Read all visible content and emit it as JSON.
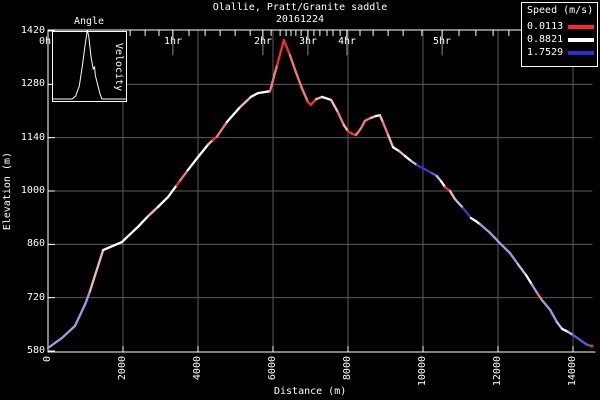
{
  "title": {
    "line1": "Olallie, Pratt/Granite saddle",
    "line2": "20161224"
  },
  "colors": {
    "background": "#000000",
    "foreground": "#ffffff",
    "grid": "#5c5c5c",
    "hour_gridline": "#8a8a8a",
    "legend_red": "#ff2626",
    "legend_white": "#ffffff",
    "legend_blue": "#2d2dd6"
  },
  "legend": {
    "title": "Speed (m/s)",
    "entries": [
      {
        "label": "0.0113",
        "color": "#ff2626"
      },
      {
        "label": "0.8821",
        "color": "#ffffff"
      },
      {
        "label": "1.7529",
        "color": "#2d2dd6"
      }
    ]
  },
  "axes": {
    "x": {
      "title": "Distance (m)",
      "ticks": [
        0,
        2000,
        4000,
        6000,
        8000,
        10000,
        12000,
        14000
      ]
    },
    "y": {
      "title": "Elevation (m)",
      "ticks": [
        1420,
        1280,
        1140,
        1000,
        860,
        720,
        580
      ]
    },
    "time": {
      "hour_marks": [
        {
          "label": "0hr",
          "distance_m": 0
        },
        {
          "label": "1hr",
          "distance_m": 3330
        },
        {
          "label": "2hr",
          "distance_m": 5730
        },
        {
          "label": "3hr",
          "distance_m": 6930
        },
        {
          "label": "4hr",
          "distance_m": 7970
        },
        {
          "label": "5hr",
          "distance_m": 10510
        }
      ],
      "minor_marks_m": [
        2190,
        2590,
        2960,
        3760,
        4190,
        4590,
        4990,
        5390,
        5950,
        6190,
        6350,
        6480,
        6610,
        6750,
        7090,
        7250,
        7440,
        7600,
        7790,
        8320,
        8670,
        9070,
        9470,
        9970,
        10960,
        11410,
        11870,
        12290
      ]
    }
  },
  "inset": {
    "title": "Angle",
    "side_label": "Velocity",
    "curve": [
      [
        0,
        0.03
      ],
      [
        0.26,
        0.03
      ],
      [
        0.31,
        0.07
      ],
      [
        0.36,
        0.22
      ],
      [
        0.4,
        0.5
      ],
      [
        0.44,
        0.82
      ],
      [
        0.47,
        1.04
      ],
      [
        0.49,
        0.95
      ],
      [
        0.52,
        0.65
      ],
      [
        0.55,
        0.47
      ],
      [
        0.57,
        0.5
      ],
      [
        0.58,
        0.38
      ],
      [
        0.61,
        0.25
      ],
      [
        0.645,
        0.1
      ],
      [
        0.67,
        0.03
      ],
      [
        1,
        0.03
      ]
    ]
  },
  "chart_data": {
    "type": "line",
    "title": "Olallie, Pratt/Granite saddle",
    "subtitle": "20161224",
    "xlabel": "Distance (m)",
    "ylabel": "Elevation (m)",
    "xlim": [
      0,
      14600
    ],
    "ylim": [
      580,
      1420
    ],
    "grid": true,
    "legend_position": "top-right",
    "series_label": "Speed (m/s)",
    "speed_legend": [
      {
        "speed_mps": 0.0113,
        "color_key": "r"
      },
      {
        "speed_mps": 0.8821,
        "color_key": "w"
      },
      {
        "speed_mps": 1.7529,
        "color_key": "b"
      }
    ],
    "palette": {
      "r": "#f23030",
      "s": "#f47b73",
      "p": "#f6b8b4",
      "w": "#ffffff",
      "lb": "#c0c0ea",
      "pb": "#9d9de2",
      "b": "#5a5ad8",
      "db": "#3838cc"
    },
    "profile": [
      [
        0,
        588,
        "pb"
      ],
      [
        370,
        614,
        "pb"
      ],
      [
        720,
        646,
        "pb"
      ],
      [
        1000,
        705,
        "pb"
      ],
      [
        1120,
        737,
        "p"
      ],
      [
        1470,
        845,
        "w"
      ],
      [
        1970,
        866,
        "w"
      ],
      [
        2400,
        906,
        "w"
      ],
      [
        2670,
        934,
        "p"
      ],
      [
        2930,
        958,
        "w"
      ],
      [
        3200,
        984,
        "w"
      ],
      [
        3430,
        1015,
        "r"
      ],
      [
        3520,
        1027,
        "s"
      ],
      [
        3730,
        1055,
        "w"
      ],
      [
        4000,
        1089,
        "w"
      ],
      [
        4270,
        1122,
        "p"
      ],
      [
        4400,
        1134,
        "r"
      ],
      [
        4500,
        1142,
        "s"
      ],
      [
        4770,
        1181,
        "w"
      ],
      [
        5120,
        1220,
        "p"
      ],
      [
        5410,
        1247,
        "w"
      ],
      [
        5600,
        1257,
        "w"
      ],
      [
        5920,
        1262,
        "s"
      ],
      [
        6110,
        1331,
        "r"
      ],
      [
        6290,
        1396,
        "r"
      ],
      [
        6450,
        1357,
        "s"
      ],
      [
        6610,
        1312,
        "s"
      ],
      [
        6770,
        1270,
        "s"
      ],
      [
        6930,
        1234,
        "r"
      ],
      [
        7010,
        1226,
        "r"
      ],
      [
        7150,
        1241,
        "p"
      ],
      [
        7310,
        1247,
        "w"
      ],
      [
        7550,
        1239,
        "p"
      ],
      [
        7730,
        1207,
        "s"
      ],
      [
        7890,
        1173,
        "p"
      ],
      [
        8000,
        1157,
        "r"
      ],
      [
        8110,
        1150,
        "r"
      ],
      [
        8210,
        1147,
        "s"
      ],
      [
        8350,
        1165,
        "s"
      ],
      [
        8450,
        1184,
        "s"
      ],
      [
        8610,
        1192,
        "p"
      ],
      [
        8750,
        1197,
        "w"
      ],
      [
        8850,
        1199,
        "p"
      ],
      [
        8930,
        1181,
        "s"
      ],
      [
        9070,
        1147,
        "p"
      ],
      [
        9200,
        1115,
        "w"
      ],
      [
        9360,
        1105,
        "p"
      ],
      [
        9520,
        1092,
        "w"
      ],
      [
        9680,
        1079,
        "lb"
      ],
      [
        9840,
        1068,
        "db"
      ],
      [
        10030,
        1058,
        "db"
      ],
      [
        10240,
        1047,
        "b"
      ],
      [
        10370,
        1039,
        "lb"
      ],
      [
        10480,
        1026,
        "w"
      ],
      [
        10590,
        1010,
        "r"
      ],
      [
        10720,
        1000,
        "p"
      ],
      [
        10850,
        979,
        "lb"
      ],
      [
        11070,
        955,
        "db"
      ],
      [
        11280,
        929,
        "w"
      ],
      [
        11410,
        921,
        "w"
      ],
      [
        11520,
        913,
        "pb"
      ],
      [
        11790,
        890,
        "pb"
      ],
      [
        12050,
        863,
        "pb"
      ],
      [
        12320,
        837,
        "pb"
      ],
      [
        12530,
        808,
        "lb"
      ],
      [
        12750,
        779,
        "w"
      ],
      [
        12900,
        755,
        "pb"
      ],
      [
        13040,
        733,
        "s"
      ],
      [
        13170,
        714,
        "pb"
      ],
      [
        13390,
        688,
        "pb"
      ],
      [
        13570,
        656,
        "lb"
      ],
      [
        13710,
        638,
        "w"
      ],
      [
        13870,
        630,
        "lb"
      ],
      [
        14000,
        622,
        "b"
      ],
      [
        14190,
        609,
        "b"
      ],
      [
        14350,
        598,
        "b"
      ],
      [
        14480,
        593,
        "b"
      ]
    ],
    "end_marker": {
      "d": 14480,
      "e": 593,
      "color_key": "r"
    }
  }
}
